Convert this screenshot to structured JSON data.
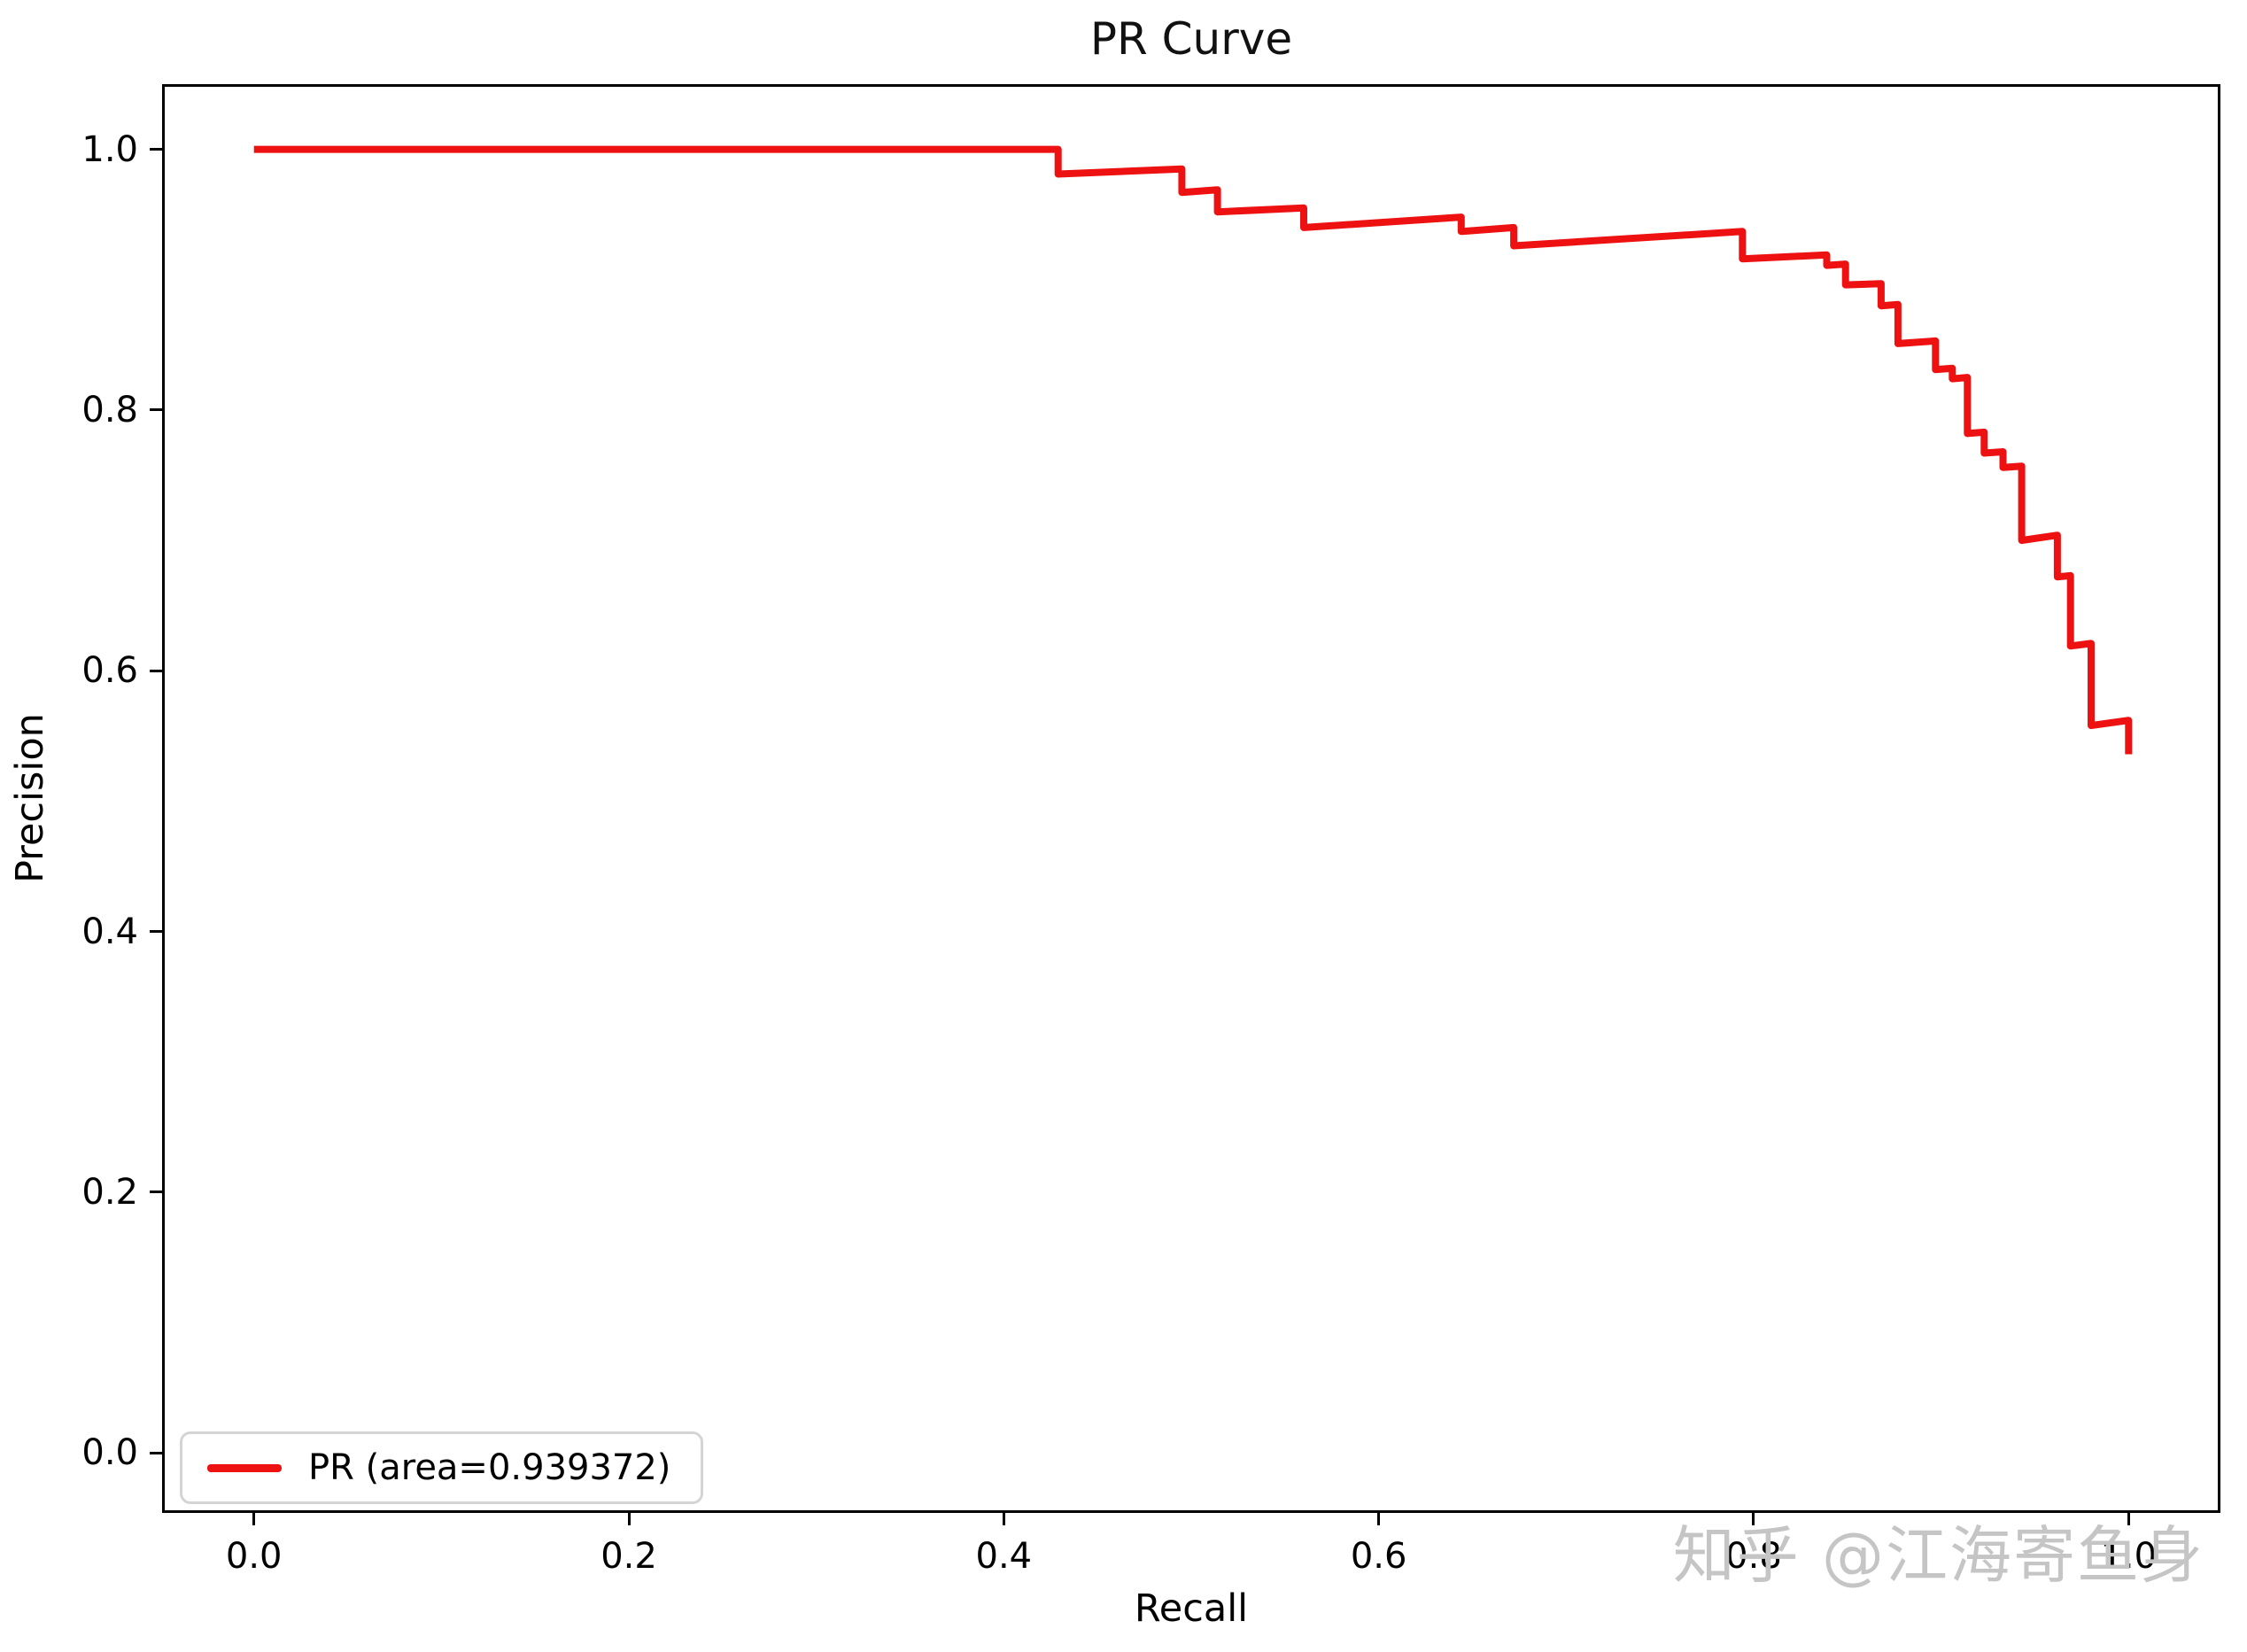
{
  "figure": {
    "title": "PR Curve",
    "x_axis_label": "Recall",
    "y_axis_label": "Precision",
    "legend_label": "PR (area=0.939372)",
    "watermark": "知乎 @江海寄鱼身"
  },
  "chart_data": {
    "type": "line",
    "title": "PR Curve",
    "xlabel": "Recall",
    "ylabel": "Precision",
    "x_ticks": [
      0.0,
      0.2,
      0.4,
      0.6,
      0.8,
      1.0
    ],
    "y_ticks": [
      0.0,
      0.2,
      0.4,
      0.6,
      0.8,
      1.0
    ],
    "xlim": [
      -0.049,
      1.049
    ],
    "ylim": [
      -0.046,
      1.05
    ],
    "grid": false,
    "legend_position": "lower left",
    "series": [
      {
        "name": "PR (area=0.939372)",
        "area": 0.939372,
        "color": "#ee1111",
        "points": [
          [
            0.0,
            1.0
          ],
          [
            0.429,
            1.0
          ],
          [
            0.429,
            0.981
          ],
          [
            0.495,
            0.985
          ],
          [
            0.495,
            0.967
          ],
          [
            0.514,
            0.969
          ],
          [
            0.514,
            0.952
          ],
          [
            0.56,
            0.955
          ],
          [
            0.56,
            0.94
          ],
          [
            0.644,
            0.948
          ],
          [
            0.644,
            0.937
          ],
          [
            0.672,
            0.94
          ],
          [
            0.672,
            0.926
          ],
          [
            0.794,
            0.937
          ],
          [
            0.794,
            0.916
          ],
          [
            0.839,
            0.919
          ],
          [
            0.839,
            0.911
          ],
          [
            0.849,
            0.912
          ],
          [
            0.849,
            0.896
          ],
          [
            0.868,
            0.897
          ],
          [
            0.868,
            0.88
          ],
          [
            0.877,
            0.881
          ],
          [
            0.877,
            0.851
          ],
          [
            0.897,
            0.853
          ],
          [
            0.897,
            0.831
          ],
          [
            0.906,
            0.832
          ],
          [
            0.906,
            0.824
          ],
          [
            0.914,
            0.825
          ],
          [
            0.914,
            0.782
          ],
          [
            0.923,
            0.783
          ],
          [
            0.923,
            0.767
          ],
          [
            0.933,
            0.768
          ],
          [
            0.933,
            0.756
          ],
          [
            0.943,
            0.757
          ],
          [
            0.943,
            0.7
          ],
          [
            0.962,
            0.704
          ],
          [
            0.962,
            0.672
          ],
          [
            0.969,
            0.673
          ],
          [
            0.969,
            0.619
          ],
          [
            0.98,
            0.621
          ],
          [
            0.98,
            0.558
          ],
          [
            1.0,
            0.562
          ],
          [
            1.0,
            0.536
          ]
        ]
      }
    ]
  }
}
